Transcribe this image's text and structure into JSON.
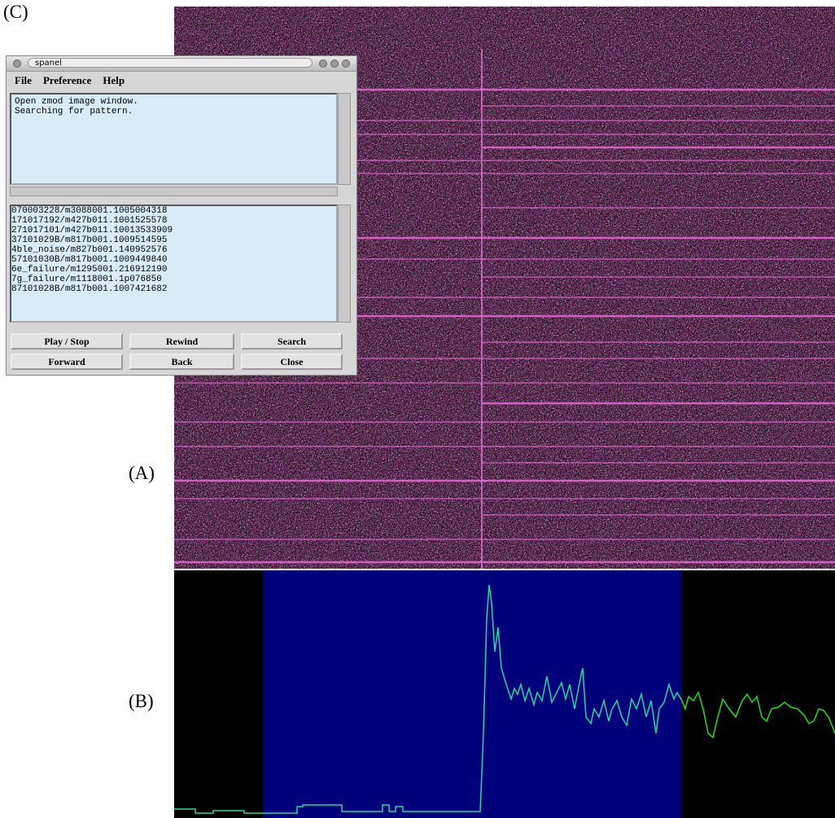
{
  "labels": {
    "c": "(C)",
    "a": "(A)",
    "b": "(B)"
  },
  "window": {
    "title": "spanel",
    "menu": [
      "File",
      "Preference",
      "Help"
    ],
    "log": [
      "Open zmod image window.",
      "Searching for pattern."
    ],
    "list": [
      [
        "0",
        "70003228/m3088001.100",
        "500",
        "4318"
      ],
      [
        "1",
        "71017192/m427b011.100",
        "152",
        "5578"
      ],
      [
        "2",
        "71017101/m427b011.100",
        "135",
        "33909"
      ],
      [
        "3",
        "7101029B/m817b001.100",
        "95",
        "14595"
      ],
      [
        "4",
        "ble_noise/m827b001.140",
        "95",
        "2576"
      ],
      [
        "5",
        "7101030B/m817b001.100",
        "94",
        "49840"
      ],
      [
        "6",
        "e_failure/m1295001.216",
        "91",
        "2190"
      ],
      [
        "7",
        "g_failure/m1118001.1p0",
        "76",
        "850"
      ],
      [
        "8",
        "7101028B/m817b001.100",
        "74",
        "21682"
      ]
    ],
    "selected": 4,
    "buttons": [
      "Play / Stop",
      "Rewind",
      "Search",
      "Forward",
      "Back",
      "Close"
    ]
  }
}
